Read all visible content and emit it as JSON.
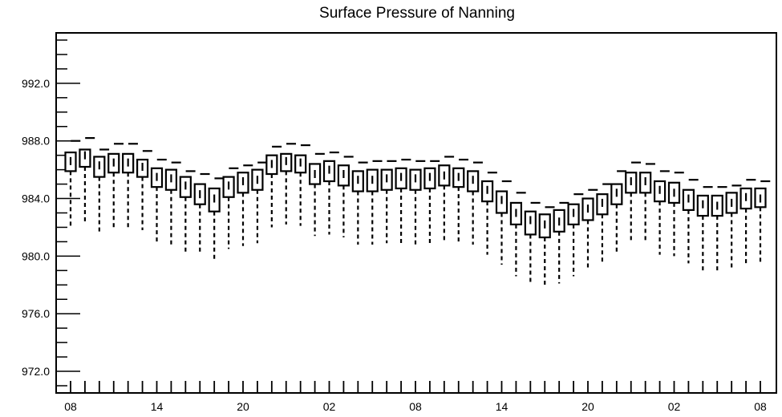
{
  "chart_data": {
    "type": "box",
    "title": "Surface Pressure of Nanning",
    "xlabel": "",
    "ylabel": "",
    "ylim": [
      970.5,
      995.5
    ],
    "y_ticks": [
      "972.0",
      "976.0",
      "980.0",
      "984.0",
      "988.0",
      "992.0"
    ],
    "y_tick_values": [
      972,
      976,
      980,
      984,
      988,
      992
    ],
    "x_tick_labels": [
      "08",
      "14",
      "20",
      "02",
      "08",
      "14",
      "20",
      "02",
      "08"
    ],
    "x_tick_steps": [
      0,
      6,
      12,
      18,
      24,
      30,
      36,
      42,
      48
    ],
    "step_hours": 1,
    "grid": false,
    "legend": "none",
    "series": [
      {
        "median": [
          986.6,
          987.0,
          986.3,
          986.5,
          986.5,
          986.2,
          985.5,
          985.4,
          984.9,
          984.3,
          984.0,
          984.9,
          985.2,
          985.3,
          986.4,
          986.6,
          986.5,
          985.7,
          986.0,
          985.7,
          985.3,
          985.3,
          985.4,
          985.5,
          985.4,
          985.5,
          985.6,
          985.5,
          985.3,
          984.6,
          983.9,
          983.0,
          982.5,
          982.2,
          982.4,
          983.0,
          983.3,
          983.7,
          984.4,
          985.2,
          985.2,
          984.6,
          984.4,
          984.0,
          983.6,
          983.5,
          983.7,
          984.1,
          984.0
        ],
        "q1": [
          985.9,
          986.2,
          985.5,
          985.8,
          985.8,
          985.5,
          984.8,
          984.6,
          984.1,
          983.6,
          983.1,
          984.1,
          984.4,
          984.6,
          985.7,
          985.9,
          985.8,
          985.0,
          985.2,
          984.9,
          984.5,
          984.5,
          984.6,
          984.7,
          984.6,
          984.7,
          984.9,
          984.8,
          984.5,
          983.8,
          983.0,
          982.2,
          981.5,
          981.3,
          981.7,
          982.2,
          982.5,
          982.9,
          983.6,
          984.4,
          984.4,
          983.8,
          983.7,
          983.2,
          982.8,
          982.8,
          983.0,
          983.3,
          983.4
        ],
        "q3": [
          987.2,
          987.4,
          986.9,
          987.1,
          987.1,
          986.7,
          986.1,
          986.0,
          985.5,
          985.0,
          984.7,
          985.5,
          985.8,
          986.0,
          987.0,
          987.1,
          987.0,
          986.4,
          986.6,
          986.3,
          985.9,
          986.0,
          986.0,
          986.1,
          986.0,
          986.1,
          986.3,
          986.1,
          985.9,
          985.2,
          984.5,
          983.7,
          983.1,
          982.9,
          983.2,
          983.6,
          984.0,
          984.3,
          985.0,
          985.8,
          985.8,
          985.2,
          985.1,
          984.6,
          984.2,
          984.2,
          984.4,
          984.7,
          984.7
        ],
        "min": [
          982.0,
          982.4,
          981.6,
          982.0,
          982.0,
          981.8,
          981.0,
          980.8,
          980.2,
          980.1,
          979.7,
          980.5,
          980.7,
          980.9,
          982.0,
          982.2,
          982.1,
          981.4,
          981.5,
          981.3,
          980.8,
          980.8,
          980.9,
          980.9,
          980.8,
          980.8,
          981.0,
          981.0,
          980.8,
          980.1,
          979.4,
          978.6,
          978.0,
          977.8,
          978.1,
          978.6,
          979.0,
          979.5,
          980.2,
          980.9,
          980.9,
          980.1,
          980.0,
          979.5,
          979.0,
          978.9,
          979.1,
          979.5,
          979.5
        ],
        "max": [
          988.0,
          988.2,
          987.4,
          987.8,
          987.8,
          987.3,
          986.7,
          986.5,
          985.9,
          985.7,
          985.4,
          986.1,
          986.3,
          986.5,
          987.6,
          987.8,
          987.7,
          987.1,
          987.2,
          986.9,
          986.5,
          986.6,
          986.6,
          986.7,
          986.6,
          986.6,
          986.9,
          986.7,
          986.5,
          985.8,
          985.2,
          984.4,
          983.7,
          983.4,
          983.7,
          984.3,
          984.6,
          985.0,
          985.9,
          986.5,
          986.4,
          985.9,
          985.8,
          985.3,
          984.8,
          984.8,
          984.9,
          985.3,
          985.2
        ]
      }
    ]
  }
}
